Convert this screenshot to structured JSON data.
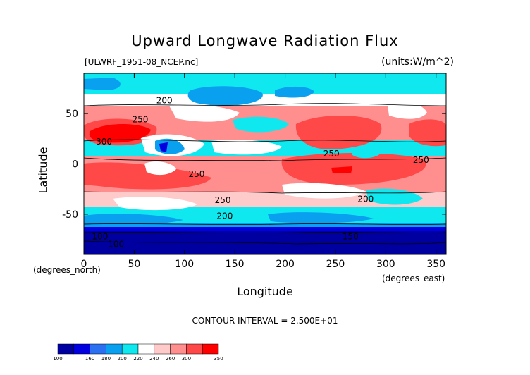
{
  "chart_data": {
    "type": "heatmap",
    "title": "Upward Longwave Radiation Flux",
    "subtitle_left": "[ULWRF_1951-08_NCEP.nc]",
    "subtitle_right": "(units:W/m^2)",
    "xlabel": "Longitude",
    "ylabel": "Latitude",
    "x_unit": "(degrees_east)",
    "y_unit": "(degrees_north)",
    "xlim": [
      0,
      360
    ],
    "ylim": [
      -90,
      90
    ],
    "x_ticks": [
      0,
      50,
      100,
      150,
      200,
      250,
      300,
      350
    ],
    "y_ticks": [
      -50,
      0,
      50
    ],
    "contour_interval": "CONTOUR INTERVAL = 2.500E+01",
    "contour_labels": [
      {
        "text": "200",
        "x": 80,
        "y": 63
      },
      {
        "text": "250",
        "x": 56,
        "y": 44
      },
      {
        "text": "300",
        "x": 20,
        "y": 22
      },
      {
        "text": "250",
        "x": 112,
        "y": -10
      },
      {
        "text": "250",
        "x": 138,
        "y": -36
      },
      {
        "text": "200",
        "x": 140,
        "y": -52
      },
      {
        "text": "250",
        "x": 246,
        "y": 10
      },
      {
        "text": "250",
        "x": 335,
        "y": 4
      },
      {
        "text": "200",
        "x": 280,
        "y": -35
      },
      {
        "text": "100",
        "x": 16,
        "y": -72
      },
      {
        "text": "100",
        "x": 32,
        "y": -80
      },
      {
        "text": "150",
        "x": 265,
        "y": -72
      }
    ],
    "colorbar": {
      "ticks": [
        100,
        160,
        180,
        200,
        220,
        240,
        260,
        300,
        350
      ],
      "colors": [
        "#0000a0",
        "#0000e0",
        "#2a70f0",
        "#0aa0f0",
        "#10e8f0",
        "#ffffff",
        "#ffcaca",
        "#ff8e8e",
        "#ff4848",
        "#ff0000"
      ]
    }
  }
}
